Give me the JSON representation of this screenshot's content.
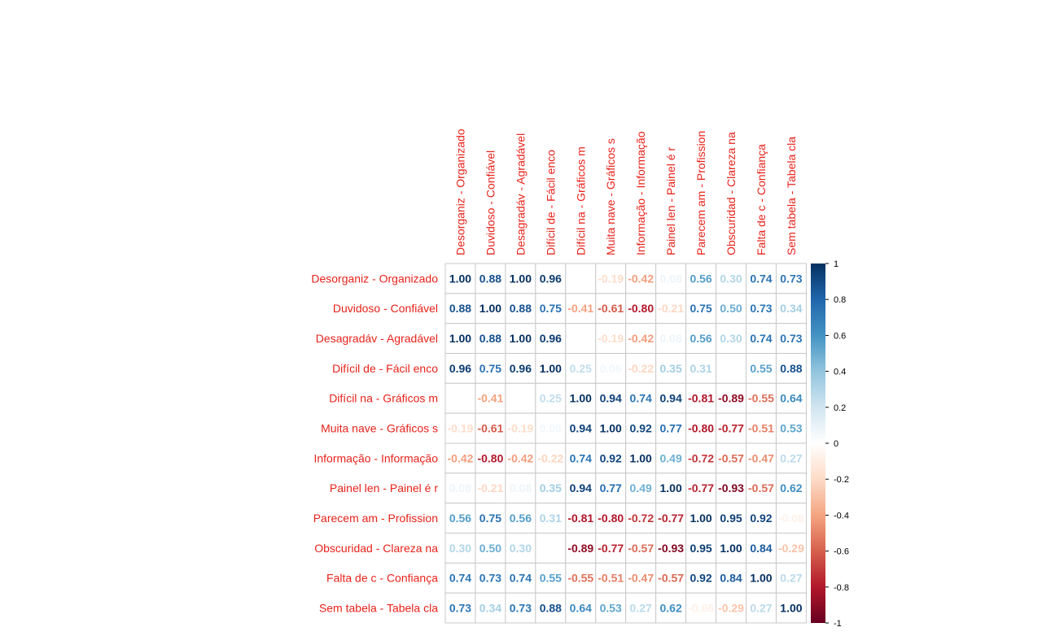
{
  "chart_data": {
    "type": "heatmap",
    "title": "",
    "labels": [
      "Desorganiz - Organizado",
      "Duvidoso - Confiável",
      "Desagradáv - Agradável",
      "Difícil de - Fácil enco",
      "Difícil na - Gráficos m",
      "Muita nave - Gráficos s",
      "Informação - Informação",
      "Painel len - Painel é r",
      "Parecem am - Profission",
      "Obscurid­ad - Clareza na",
      "Falta de c - Confiança",
      "Sem tabela - Tabela cla"
    ],
    "matrix": [
      [
        1.0,
        0.88,
        1.0,
        0.96,
        0.0,
        -0.19,
        -0.42,
        0.08,
        0.56,
        0.3,
        0.74,
        0.73
      ],
      [
        0.88,
        1.0,
        0.88,
        0.75,
        -0.41,
        -0.61,
        -0.8,
        -0.21,
        0.75,
        0.5,
        0.73,
        0.34
      ],
      [
        1.0,
        0.88,
        1.0,
        0.96,
        0.0,
        -0.19,
        -0.42,
        0.08,
        0.56,
        0.3,
        0.74,
        0.73
      ],
      [
        0.96,
        0.75,
        0.96,
        1.0,
        0.25,
        0.06,
        -0.22,
        0.35,
        0.31,
        0.0,
        0.55,
        0.88
      ],
      [
        0.0,
        -0.41,
        0.0,
        0.25,
        1.0,
        0.94,
        0.74,
        0.94,
        -0.81,
        -0.89,
        -0.55,
        0.64
      ],
      [
        -0.19,
        -0.61,
        -0.19,
        0.06,
        0.94,
        1.0,
        0.92,
        0.77,
        -0.8,
        -0.77,
        -0.51,
        0.53
      ],
      [
        -0.42,
        -0.8,
        -0.42,
        -0.22,
        0.74,
        0.92,
        1.0,
        0.49,
        -0.72,
        -0.57,
        -0.47,
        0.27
      ],
      [
        0.08,
        -0.21,
        0.08,
        0.35,
        0.94,
        0.77,
        0.49,
        1.0,
        -0.77,
        -0.93,
        -0.57,
        0.62
      ],
      [
        0.56,
        0.75,
        0.56,
        0.31,
        -0.81,
        -0.8,
        -0.72,
        -0.77,
        1.0,
        0.95,
        0.92,
        -0.08
      ],
      [
        0.3,
        0.5,
        0.3,
        0.0,
        -0.89,
        -0.77,
        -0.57,
        -0.93,
        0.95,
        1.0,
        0.84,
        -0.29
      ],
      [
        0.74,
        0.73,
        0.74,
        0.55,
        -0.55,
        -0.51,
        -0.47,
        -0.57,
        0.92,
        0.84,
        1.0,
        0.27
      ],
      [
        0.73,
        0.34,
        0.73,
        0.88,
        0.64,
        0.53,
        0.27,
        0.62,
        -0.08,
        -0.29,
        0.27,
        1.0
      ]
    ],
    "color_scale": {
      "range": [
        -1,
        1
      ],
      "ticks": [
        "1",
        "0.8",
        "0.6",
        "0.4",
        "0.2",
        "0",
        "-0.2",
        "-0.4",
        "-0.6",
        "-0.8",
        "-1"
      ],
      "stops": [
        "#67001F",
        "#B2182B",
        "#D6604D",
        "#F4A582",
        "#FDDBC7",
        "#FFFFFF",
        "#D1E5F0",
        "#92C5DE",
        "#4393C3",
        "#2166AC",
        "#053061"
      ]
    },
    "label_color": "#e8231b",
    "grid": true,
    "legend": "right"
  }
}
